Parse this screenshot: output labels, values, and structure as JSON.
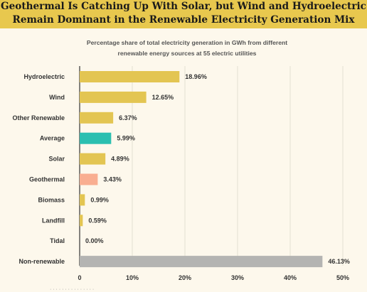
{
  "header": {
    "title_line1": "Geothermal Is Catching Up With Solar, but Wind and Hydroelectric",
    "title_line2": "Remain Dominant in the Renewable Electricity Generation Mix"
  },
  "subtitle": {
    "line1": "Percentage share of total electricity generation in GWh from different",
    "line2": "renewable energy sources at 55 electric utilities"
  },
  "colors": {
    "header_bg": "#e8c84e",
    "bar_default": "#e3c552",
    "bar_average": "#2bbfb0",
    "bar_geothermal": "#f9ae91",
    "bar_nonrenewable": "#b4b4b2",
    "grid": "#e4dfd2",
    "background": "#fdf8ec"
  },
  "chart_data": {
    "type": "bar",
    "orientation": "horizontal",
    "title": "Geothermal Is Catching Up With Solar, but Wind and Hydroelectric Remain Dominant in the Renewable Electricity Generation Mix",
    "subtitle": "Percentage share of total electricity generation in GWh from different renewable energy sources at 55 electric utilities",
    "categories": [
      "Hydroelectric",
      "Wind",
      "Other Renewable",
      "Average",
      "Solar",
      "Geothermal",
      "Biomass",
      "Landfill",
      "Tidal",
      "Non-renewable"
    ],
    "values": [
      18.96,
      12.65,
      6.37,
      5.99,
      4.89,
      3.43,
      0.99,
      0.59,
      0.0,
      46.13
    ],
    "value_labels": [
      "18.96%",
      "12.65%",
      "6.37%",
      "5.99%",
      "4.89%",
      "3.43%",
      "0.99%",
      "0.59%",
      "0.00%",
      "46.13%"
    ],
    "bar_colors": [
      "#e3c552",
      "#e3c552",
      "#e3c552",
      "#2bbfb0",
      "#e3c552",
      "#f9ae91",
      "#e3c552",
      "#e3c552",
      "#e3c552",
      "#b4b4b2"
    ],
    "xlim": [
      0,
      50
    ],
    "xticks": [
      0,
      10,
      20,
      30,
      40,
      50
    ],
    "xtick_labels": [
      "0",
      "10%",
      "20%",
      "30%",
      "40%",
      "50%"
    ],
    "grid": true,
    "xlabel": "",
    "ylabel": ""
  }
}
